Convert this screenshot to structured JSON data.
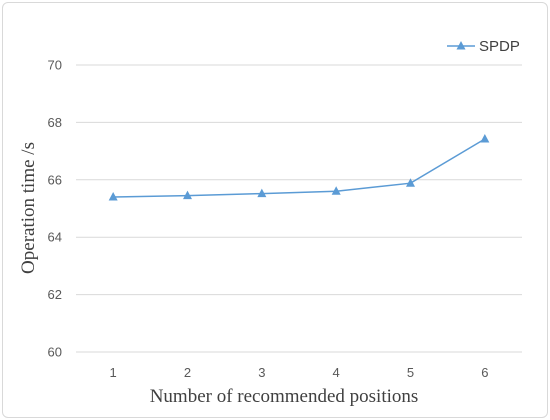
{
  "chart_data": {
    "type": "line",
    "title": "",
    "xlabel": "Number of recommended positions",
    "ylabel": "Operation time /s",
    "categories": [
      "1",
      "2",
      "3",
      "4",
      "5",
      "6"
    ],
    "series": [
      {
        "name": "SPDP",
        "values": [
          65.4,
          65.45,
          65.52,
          65.6,
          65.88,
          67.42
        ]
      }
    ],
    "ylim": [
      60,
      70
    ],
    "yticks": [
      60,
      62,
      64,
      66,
      68,
      70
    ],
    "grid": true,
    "legend_position": "top-right",
    "line_color": "#5b9bd5"
  }
}
